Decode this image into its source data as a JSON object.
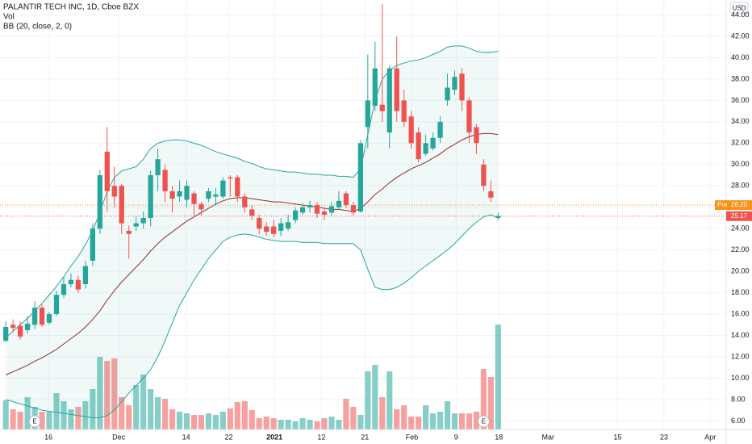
{
  "chart_data": {
    "type": "candlestick",
    "title": "PALANTIR TECH INC, 1D, Cboe BZX",
    "volume_label": "Vol",
    "indicator_label": "BB (20, close, 2, 0)",
    "currency": "USD",
    "up_color": "#26a69a",
    "down_color": "#ef5350",
    "band_color": "#26a69a",
    "basis_color": "#8b2e2e",
    "grid": true,
    "xlim": [
      -0.8,
      99.5
    ],
    "ylim": [
      5.2,
      45.4
    ],
    "vlim": [
      0,
      140
    ],
    "yticks": [
      {
        "value": 6,
        "label": "6.00"
      },
      {
        "value": 8,
        "label": "8.00"
      },
      {
        "value": 10,
        "label": "10.00"
      },
      {
        "value": 12,
        "label": "12.00"
      },
      {
        "value": 14,
        "label": "14.00"
      },
      {
        "value": 16,
        "label": "16.00"
      },
      {
        "value": 18,
        "label": "18.00"
      },
      {
        "value": 20,
        "label": "20.00"
      },
      {
        "value": 22,
        "label": "22.00"
      },
      {
        "value": 24,
        "label": "24.00"
      },
      {
        "value": 26,
        "label": "26.00"
      },
      {
        "value": 28,
        "label": "28.00"
      },
      {
        "value": 30,
        "label": "30.00"
      },
      {
        "value": 32,
        "label": "32.00"
      },
      {
        "value": 34,
        "label": "34.00"
      },
      {
        "value": 36,
        "label": "36.00"
      },
      {
        "value": 38,
        "label": "38.00"
      },
      {
        "value": 40,
        "label": "40.00"
      },
      {
        "value": 42,
        "label": "42.00"
      },
      {
        "value": 44,
        "label": "44.00"
      }
    ],
    "xticks": [
      {
        "value": 5.9,
        "label": "16"
      },
      {
        "value": 15.6,
        "label": "Dec"
      },
      {
        "value": 24.9,
        "label": "14"
      },
      {
        "value": 30.8,
        "label": "22"
      },
      {
        "value": 37.1,
        "label": "2021"
      },
      {
        "value": 43.6,
        "label": "12"
      },
      {
        "value": 49.6,
        "label": "21"
      },
      {
        "value": 56.1,
        "label": "Feb"
      },
      {
        "value": 62.2,
        "label": "9"
      },
      {
        "value": 68.1,
        "label": "18"
      },
      {
        "value": 74.9,
        "label": "Mar"
      },
      {
        "value": 84.5,
        "label": "15"
      },
      {
        "value": 90.9,
        "label": "23"
      },
      {
        "value": 97.3,
        "label": "Apr"
      }
    ],
    "candles": {
      "open": [
        13.5,
        15.0,
        14.9,
        14.5,
        15.0,
        16.6,
        15.2,
        16.0,
        17.8,
        18.8,
        19.2,
        18.8,
        21.0,
        24.0,
        31.2,
        28.0,
        28.0,
        23.8,
        24.2,
        24.5,
        25.0,
        29.0,
        29.5,
        27.5,
        27.0,
        26.7,
        27.3,
        26.3,
        26.8,
        27.0,
        27.0,
        28.8,
        28.8,
        27.0,
        25.8,
        25.0,
        24.2,
        24.2,
        23.8,
        24.0,
        24.8,
        25.5,
        26.0,
        26.2,
        25.6,
        25.5,
        26.0,
        27.3,
        26.2,
        25.6,
        33.5,
        35.5,
        35.6,
        33.0,
        39.0,
        36.0,
        34.5,
        33.0,
        31.0,
        31.5,
        32.5,
        36.0,
        37.0,
        38.5,
        36.0,
        33.5,
        30.0,
        27.5,
        25.0
      ],
      "high": [
        15.3,
        15.5,
        15.3,
        15.8,
        17.2,
        16.9,
        16.2,
        18.2,
        19.5,
        19.8,
        19.6,
        21.0,
        24.5,
        29.5,
        33.5,
        29.8,
        28.2,
        24.3,
        25.2,
        25.6,
        29.4,
        31.5,
        30.0,
        28.0,
        28.5,
        28.5,
        27.5,
        26.5,
        27.8,
        27.8,
        28.8,
        29.0,
        29.0,
        27.3,
        26.2,
        25.3,
        24.6,
        24.8,
        25.0,
        25.3,
        26.0,
        26.4,
        26.6,
        26.5,
        26.0,
        26.5,
        27.5,
        27.5,
        26.5,
        32.3,
        40.3,
        41.5,
        45.0,
        39.3,
        42.0,
        37.0,
        35.0,
        33.5,
        32.8,
        33.0,
        34.5,
        38.5,
        38.8,
        39.0,
        36.3,
        33.8,
        30.5,
        28.5,
        25.5
      ],
      "low": [
        13.4,
        14.3,
        13.6,
        14.2,
        14.6,
        14.8,
        15.0,
        15.8,
        17.5,
        18.5,
        18.0,
        18.4,
        20.5,
        23.5,
        25.6,
        26.0,
        23.5,
        21.2,
        23.8,
        24.0,
        24.2,
        27.5,
        26.5,
        25.5,
        26.5,
        26.0,
        25.2,
        25.2,
        26.5,
        26.2,
        26.8,
        27.0,
        26.5,
        25.5,
        24.8,
        23.5,
        23.3,
        23.2,
        23.3,
        23.8,
        24.5,
        25.3,
        25.5,
        25.0,
        24.8,
        25.2,
        25.8,
        25.9,
        25.2,
        25.5,
        31.5,
        35.0,
        34.0,
        31.5,
        34.0,
        33.5,
        31.5,
        30.2,
        30.8,
        31.3,
        32.0,
        35.5,
        36.5,
        35.0,
        32.0,
        31.0,
        27.5,
        26.5,
        24.8
      ],
      "close": [
        14.8,
        14.7,
        13.9,
        15.1,
        16.6,
        15.0,
        16.0,
        17.8,
        18.8,
        19.2,
        18.3,
        20.5,
        24.0,
        29.0,
        27.5,
        27.0,
        24.5,
        23.5,
        24.5,
        25.0,
        29.0,
        30.5,
        27.5,
        26.8,
        27.5,
        28.0,
        26.3,
        25.8,
        27.5,
        27.2,
        28.5,
        28.7,
        27.0,
        26.0,
        25.2,
        24.0,
        23.7,
        23.5,
        24.5,
        24.6,
        25.7,
        26.0,
        26.2,
        25.4,
        25.3,
        26.1,
        26.6,
        26.2,
        25.5,
        32.0,
        36.0,
        39.0,
        35.0,
        39.0,
        35.0,
        34.0,
        32.0,
        30.5,
        32.0,
        32.5,
        34.0,
        37.2,
        38.2,
        36.0,
        33.0,
        32.0,
        28.0,
        26.9,
        25.17
      ]
    },
    "volume": {
      "values": [
        36,
        25,
        22,
        40,
        28,
        22,
        22,
        45,
        35,
        25,
        28,
        35,
        50,
        90,
        85,
        88,
        40,
        30,
        55,
        68,
        50,
        40,
        38,
        25,
        22,
        20,
        18,
        18,
        20,
        18,
        22,
        26,
        34,
        35,
        24,
        14,
        16,
        14,
        12,
        12,
        10,
        14,
        12,
        10,
        14,
        16,
        12,
        38,
        28,
        18,
        72,
        80,
        40,
        72,
        25,
        30,
        16,
        16,
        30,
        20,
        22,
        35,
        20,
        20,
        20,
        22,
        75,
        65,
        130
      ]
    },
    "bands": {
      "upper": [
        13.8,
        14.4,
        15.0,
        15.6,
        16.3,
        17.0,
        17.8,
        18.6,
        19.5,
        20.5,
        21.4,
        22.5,
        23.8,
        25.5,
        27.5,
        28.8,
        29.4,
        29.6,
        29.8,
        30.5,
        31.5,
        32.0,
        32.2,
        32.3,
        32.3,
        32.2,
        32.0,
        31.8,
        31.5,
        31.2,
        31.0,
        30.8,
        30.6,
        30.3,
        30.1,
        29.8,
        29.6,
        29.5,
        29.4,
        29.3,
        29.3,
        29.2,
        29.1,
        29.1,
        29.0,
        29.0,
        28.9,
        28.9,
        28.8,
        29.6,
        32.8,
        36.0,
        38.0,
        38.8,
        39.3,
        39.5,
        39.7,
        39.8,
        40.0,
        40.3,
        40.6,
        41.0,
        41.1,
        41.1,
        40.9,
        40.6,
        40.5,
        40.5,
        40.6
      ],
      "basis": [
        10.3,
        10.6,
        10.9,
        11.2,
        11.6,
        11.9,
        12.3,
        12.7,
        13.2,
        13.7,
        14.2,
        14.8,
        15.5,
        16.3,
        17.3,
        18.2,
        19.0,
        19.7,
        20.4,
        21.1,
        21.9,
        22.6,
        23.2,
        23.7,
        24.2,
        24.7,
        25.1,
        25.5,
        25.9,
        26.3,
        26.6,
        26.8,
        26.9,
        26.9,
        26.8,
        26.7,
        26.6,
        26.5,
        26.5,
        26.4,
        26.3,
        26.2,
        26.1,
        26.0,
        25.9,
        25.8,
        25.8,
        25.7,
        25.6,
        25.9,
        26.5,
        27.2,
        27.7,
        28.3,
        28.8,
        29.2,
        29.6,
        29.9,
        30.2,
        30.6,
        31.0,
        31.5,
        31.9,
        32.3,
        32.6,
        32.8,
        32.9,
        32.9,
        32.8
      ],
      "lower": [
        8.0,
        7.8,
        7.6,
        7.4,
        7.2,
        7.0,
        6.9,
        6.8,
        6.7,
        6.6,
        6.5,
        6.4,
        6.3,
        6.3,
        6.5,
        7.0,
        7.8,
        8.6,
        9.3,
        10.0,
        10.8,
        12.0,
        13.5,
        15.2,
        16.8,
        18.0,
        19.2,
        20.2,
        21.2,
        22.0,
        22.8,
        23.2,
        23.4,
        23.5,
        23.4,
        23.2,
        23.0,
        22.9,
        22.8,
        22.8,
        22.8,
        22.7,
        22.7,
        22.7,
        22.6,
        22.6,
        22.6,
        22.6,
        22.6,
        22.0,
        20.2,
        18.5,
        18.3,
        18.3,
        18.5,
        18.9,
        19.4,
        20.0,
        20.5,
        21.0,
        21.5,
        22.0,
        22.6,
        23.3,
        24.0,
        24.6,
        25.1,
        25.3,
        25.0
      ]
    },
    "pre_market": {
      "label": "Pre",
      "value": 26.2,
      "value_label": "26.20",
      "color": "#f7931a"
    },
    "last_price": {
      "value": 25.17,
      "color": "#ef5350"
    },
    "earnings": [
      {
        "x": 4,
        "label": "E"
      },
      {
        "x": 66,
        "label": "E"
      }
    ]
  }
}
